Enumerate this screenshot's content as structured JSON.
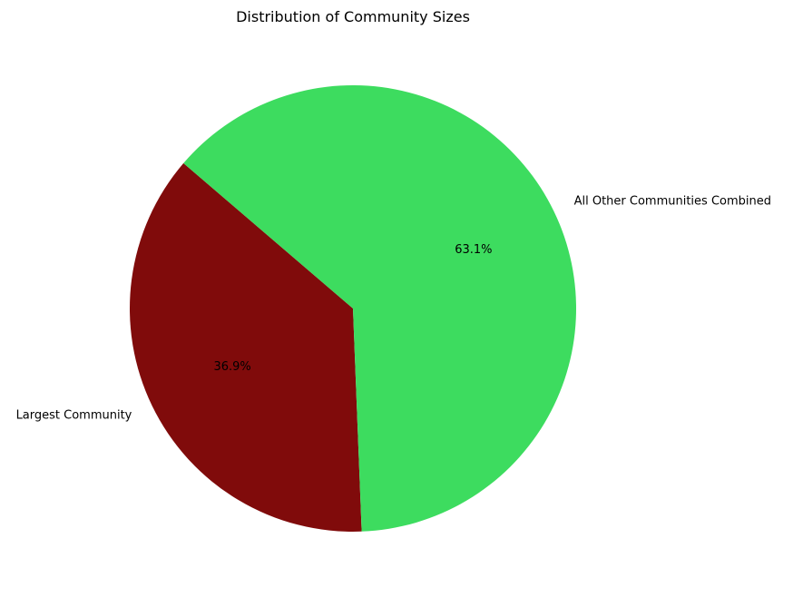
{
  "chart_data": {
    "type": "pie",
    "title": "Distribution of Community Sizes",
    "slices": [
      {
        "label": "Largest Community",
        "value": 36.9,
        "pct_label": "36.9%",
        "color": "#800b0b"
      },
      {
        "label": "All Other Communities Combined",
        "value": 63.1,
        "pct_label": "63.1%",
        "color": "#3ddc5f"
      }
    ]
  }
}
